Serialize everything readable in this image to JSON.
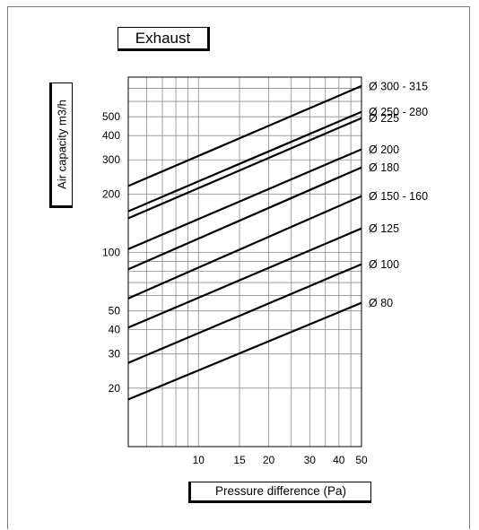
{
  "chart_data": {
    "type": "line",
    "title": "Exhaust",
    "xlabel": "Pressure difference (Pa)",
    "ylabel": "Air capacity m3/h",
    "xscale": "log",
    "yscale": "log",
    "xlim": [
      5,
      50
    ],
    "ylim": [
      10,
      800
    ],
    "grid": true,
    "x_ticks": [
      10,
      15,
      20,
      30,
      40,
      50
    ],
    "x_tick_labels": [
      "10",
      "15",
      "20",
      "30",
      "40",
      "50"
    ],
    "y_ticks": [
      20,
      30,
      40,
      50,
      100,
      200,
      300,
      400,
      500
    ],
    "y_tick_labels": [
      "20",
      "30",
      "40",
      "50",
      "100",
      "200",
      "300",
      "400",
      "500"
    ],
    "series": [
      {
        "name": "Ø 300 - 315",
        "x": [
          5,
          50
        ],
        "y": [
          220,
          720
        ]
      },
      {
        "name": "Ø 250 - 280",
        "x": [
          5,
          50
        ],
        "y": [
          163,
          530
        ]
      },
      {
        "name": "Ø 225",
        "x": [
          5,
          50
        ],
        "y": [
          150,
          492
        ]
      },
      {
        "name": "Ø 200",
        "x": [
          5,
          50
        ],
        "y": [
          104,
          340
        ]
      },
      {
        "name": "Ø 180",
        "x": [
          5,
          50
        ],
        "y": [
          82,
          274
        ]
      },
      {
        "name": "Ø 150 - 160",
        "x": [
          5,
          50
        ],
        "y": [
          58,
          195
        ]
      },
      {
        "name": "Ø 125",
        "x": [
          5,
          50
        ],
        "y": [
          41,
          133
        ]
      },
      {
        "name": "Ø 100",
        "x": [
          5,
          50
        ],
        "y": [
          27,
          87
        ]
      },
      {
        "name": "Ø 80",
        "x": [
          5,
          50
        ],
        "y": [
          17.5,
          55
        ]
      }
    ]
  }
}
